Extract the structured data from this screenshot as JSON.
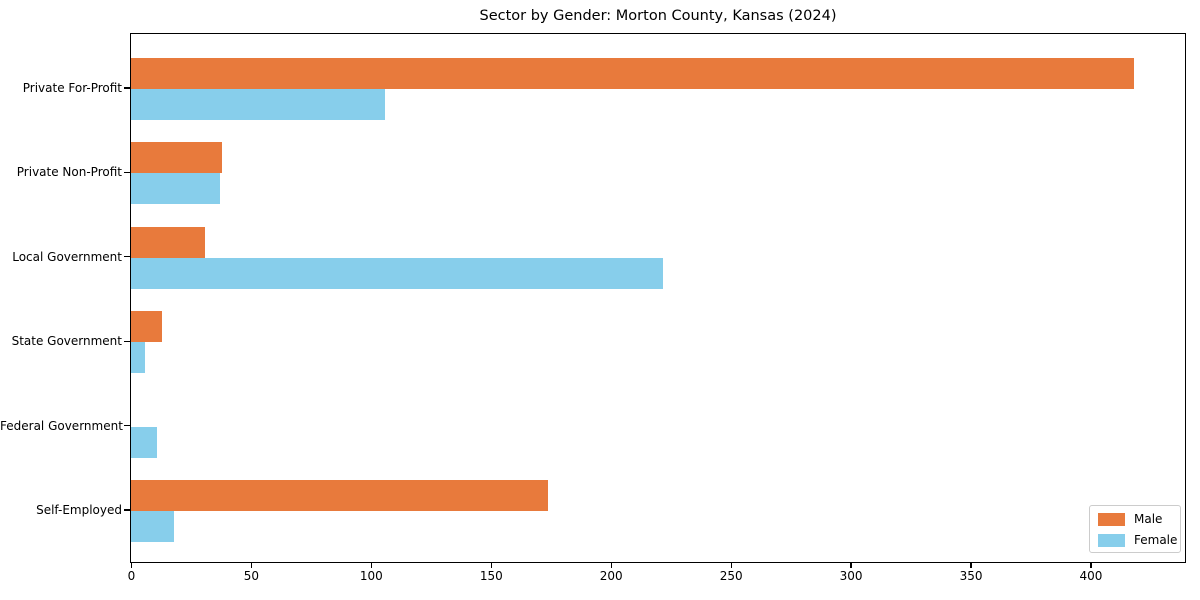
{
  "title": "Sector by Gender: Morton County, Kansas (2024)",
  "chart_data": {
    "type": "bar",
    "orientation": "horizontal",
    "title": "Sector by Gender: Morton County, Kansas (2024)",
    "categories": [
      "Private For-Profit",
      "Private Non-Profit",
      "Local Government",
      "State Government",
      "Federal Government",
      "Self-Employed"
    ],
    "series": [
      {
        "name": "Male",
        "color": "#E87A3C",
        "values": [
          418,
          38,
          31,
          13,
          0,
          174
        ]
      },
      {
        "name": "Female",
        "color": "#87CEEB",
        "values": [
          106,
          37,
          222,
          6,
          11,
          18
        ]
      }
    ],
    "xlabel": "",
    "ylabel": "",
    "xlim": [
      0,
      439
    ],
    "x_ticks": [
      "0",
      "50",
      "100",
      "150",
      "200",
      "250",
      "300",
      "350",
      "400"
    ],
    "grid": false,
    "legend_position": "lower right"
  },
  "legend": {
    "items": [
      {
        "label": "Male",
        "color": "#E87A3C"
      },
      {
        "label": "Female",
        "color": "#87CEEB"
      }
    ]
  }
}
